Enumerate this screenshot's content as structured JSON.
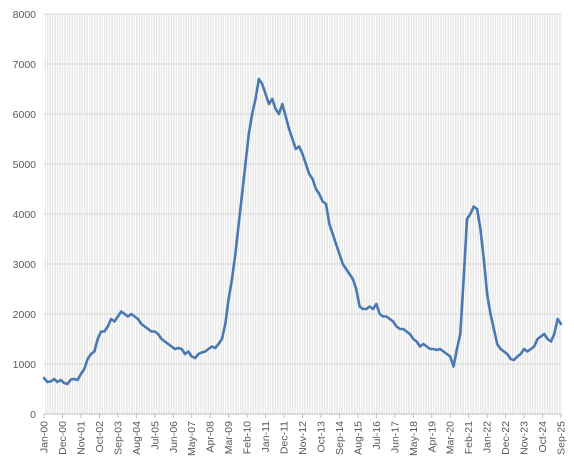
{
  "chart_data": {
    "type": "line",
    "title": "",
    "xlabel": "",
    "ylabel": "",
    "ylim": [
      0,
      8000
    ],
    "y_ticks": [
      0,
      1000,
      2000,
      3000,
      4000,
      5000,
      6000,
      7000,
      8000
    ],
    "x_tick_labels": [
      "Jan-00",
      "Dec-00",
      "Nov-01",
      "Oct-02",
      "Sep-03",
      "Aug-04",
      "Jul-05",
      "Jun-06",
      "May-07",
      "Apr-08",
      "Mar-09",
      "Feb-10",
      "Jan-11",
      "Dec-11",
      "Nov-12",
      "Oct-13",
      "Sep-14",
      "Aug-15",
      "Jul-16",
      "Jun-17",
      "May-18",
      "Apr-19",
      "Mar-20",
      "Feb-21",
      "Jan-22",
      "Dec-22",
      "Nov-23",
      "Oct-24",
      "Sep-25"
    ],
    "grid": true,
    "legend": "none",
    "line_color": "#4a78b0",
    "series": [
      {
        "points": [
          [
            "2000-01",
            720
          ],
          [
            "2000-03",
            640
          ],
          [
            "2000-05",
            650
          ],
          [
            "2000-07",
            700
          ],
          [
            "2000-09",
            640
          ],
          [
            "2000-11",
            680
          ],
          [
            "2001-01",
            620
          ],
          [
            "2001-03",
            600
          ],
          [
            "2001-05",
            690
          ],
          [
            "2001-07",
            700
          ],
          [
            "2001-09",
            680
          ],
          [
            "2001-11",
            800
          ],
          [
            "2002-01",
            900
          ],
          [
            "2002-03",
            1100
          ],
          [
            "2002-05",
            1200
          ],
          [
            "2002-07",
            1250
          ],
          [
            "2002-09",
            1500
          ],
          [
            "2002-11",
            1650
          ],
          [
            "2003-01",
            1650
          ],
          [
            "2003-03",
            1750
          ],
          [
            "2003-05",
            1900
          ],
          [
            "2003-07",
            1850
          ],
          [
            "2003-09",
            1950
          ],
          [
            "2003-11",
            2050
          ],
          [
            "2004-01",
            2000
          ],
          [
            "2004-03",
            1950
          ],
          [
            "2004-05",
            2000
          ],
          [
            "2004-07",
            1950
          ],
          [
            "2004-09",
            1900
          ],
          [
            "2004-11",
            1800
          ],
          [
            "2005-01",
            1750
          ],
          [
            "2005-03",
            1700
          ],
          [
            "2005-05",
            1650
          ],
          [
            "2005-07",
            1650
          ],
          [
            "2005-09",
            1600
          ],
          [
            "2005-11",
            1500
          ],
          [
            "2006-01",
            1450
          ],
          [
            "2006-03",
            1400
          ],
          [
            "2006-05",
            1350
          ],
          [
            "2006-07",
            1300
          ],
          [
            "2006-09",
            1320
          ],
          [
            "2006-11",
            1300
          ],
          [
            "2007-01",
            1200
          ],
          [
            "2007-03",
            1250
          ],
          [
            "2007-05",
            1150
          ],
          [
            "2007-07",
            1120
          ],
          [
            "2007-09",
            1200
          ],
          [
            "2007-11",
            1230
          ],
          [
            "2008-01",
            1250
          ],
          [
            "2008-03",
            1300
          ],
          [
            "2008-05",
            1350
          ],
          [
            "2008-07",
            1320
          ],
          [
            "2008-09",
            1400
          ],
          [
            "2008-11",
            1500
          ],
          [
            "2009-01",
            1800
          ],
          [
            "2009-03",
            2300
          ],
          [
            "2009-05",
            2700
          ],
          [
            "2009-07",
            3200
          ],
          [
            "2009-09",
            3800
          ],
          [
            "2009-11",
            4400
          ],
          [
            "2010-01",
            5000
          ],
          [
            "2010-03",
            5600
          ],
          [
            "2010-05",
            6000
          ],
          [
            "2010-07",
            6300
          ],
          [
            "2010-09",
            6700
          ],
          [
            "2010-11",
            6600
          ],
          [
            "2011-01",
            6400
          ],
          [
            "2011-03",
            6200
          ],
          [
            "2011-05",
            6300
          ],
          [
            "2011-07",
            6100
          ],
          [
            "2011-09",
            6000
          ],
          [
            "2011-11",
            6200
          ],
          [
            "2012-01",
            5950
          ],
          [
            "2012-03",
            5700
          ],
          [
            "2012-05",
            5500
          ],
          [
            "2012-07",
            5300
          ],
          [
            "2012-09",
            5350
          ],
          [
            "2012-11",
            5200
          ],
          [
            "2013-01",
            5000
          ],
          [
            "2013-03",
            4800
          ],
          [
            "2013-05",
            4700
          ],
          [
            "2013-07",
            4500
          ],
          [
            "2013-09",
            4400
          ],
          [
            "2013-11",
            4250
          ],
          [
            "2014-01",
            4200
          ],
          [
            "2014-03",
            3800
          ],
          [
            "2014-05",
            3600
          ],
          [
            "2014-07",
            3400
          ],
          [
            "2014-09",
            3200
          ],
          [
            "2014-11",
            3000
          ],
          [
            "2015-01",
            2900
          ],
          [
            "2015-03",
            2800
          ],
          [
            "2015-05",
            2700
          ],
          [
            "2015-07",
            2500
          ],
          [
            "2015-09",
            2150
          ],
          [
            "2015-11",
            2100
          ],
          [
            "2016-01",
            2100
          ],
          [
            "2016-03",
            2150
          ],
          [
            "2016-05",
            2100
          ],
          [
            "2016-07",
            2200
          ],
          [
            "2016-09",
            2000
          ],
          [
            "2016-11",
            1950
          ],
          [
            "2017-01",
            1950
          ],
          [
            "2017-03",
            1900
          ],
          [
            "2017-05",
            1850
          ],
          [
            "2017-07",
            1750
          ],
          [
            "2017-09",
            1700
          ],
          [
            "2017-11",
            1700
          ],
          [
            "2018-01",
            1650
          ],
          [
            "2018-03",
            1600
          ],
          [
            "2018-05",
            1500
          ],
          [
            "2018-07",
            1450
          ],
          [
            "2018-09",
            1350
          ],
          [
            "2018-11",
            1400
          ],
          [
            "2019-01",
            1350
          ],
          [
            "2019-03",
            1300
          ],
          [
            "2019-05",
            1300
          ],
          [
            "2019-07",
            1280
          ],
          [
            "2019-09",
            1300
          ],
          [
            "2019-11",
            1250
          ],
          [
            "2020-01",
            1200
          ],
          [
            "2020-03",
            1150
          ],
          [
            "2020-05",
            950
          ],
          [
            "2020-07",
            1300
          ],
          [
            "2020-09",
            1600
          ],
          [
            "2020-11",
            2700
          ],
          [
            "2021-01",
            3900
          ],
          [
            "2021-03",
            4000
          ],
          [
            "2021-05",
            4150
          ],
          [
            "2021-07",
            4100
          ],
          [
            "2021-09",
            3700
          ],
          [
            "2021-11",
            3100
          ],
          [
            "2022-01",
            2400
          ],
          [
            "2022-03",
            2000
          ],
          [
            "2022-05",
            1700
          ],
          [
            "2022-07",
            1400
          ],
          [
            "2022-09",
            1300
          ],
          [
            "2022-11",
            1250
          ],
          [
            "2023-01",
            1200
          ],
          [
            "2023-03",
            1100
          ],
          [
            "2023-05",
            1080
          ],
          [
            "2023-07",
            1150
          ],
          [
            "2023-09",
            1200
          ],
          [
            "2023-11",
            1300
          ],
          [
            "2024-01",
            1250
          ],
          [
            "2024-03",
            1300
          ],
          [
            "2024-05",
            1350
          ],
          [
            "2024-07",
            1500
          ],
          [
            "2024-09",
            1550
          ],
          [
            "2024-11",
            1600
          ],
          [
            "2025-01",
            1500
          ],
          [
            "2025-03",
            1450
          ],
          [
            "2025-05",
            1600
          ],
          [
            "2025-07",
            1900
          ],
          [
            "2025-09",
            1800
          ]
        ]
      }
    ]
  }
}
